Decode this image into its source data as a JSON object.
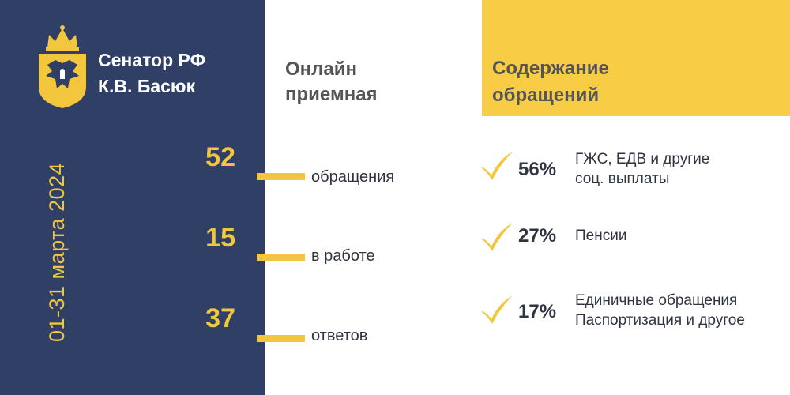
{
  "colors": {
    "navy": "#2f3f66",
    "gold": "#f2c73d",
    "yellow_panel": "#f9cc45"
  },
  "sidebar": {
    "emblem_icon": "coat-of-arms-icon",
    "title_line1": "Сенатор РФ",
    "title_line2": "К.В. Басюк",
    "period": "01-31 марта 2024"
  },
  "online": {
    "title_line1": "Онлайн",
    "title_line2": "приемная"
  },
  "stats": [
    {
      "value": "52",
      "label": "обращения"
    },
    {
      "value": "15",
      "label": "в работе"
    },
    {
      "value": "37",
      "label": "ответов"
    }
  ],
  "content": {
    "title_line1": "Содержание",
    "title_line2": "обращений",
    "check_icon": "checkmark-icon",
    "items": [
      {
        "percent": "56%",
        "line1": "ГЖС, ЕДВ и другие",
        "line2": "соц. выплаты"
      },
      {
        "percent": "27%",
        "line1": "Пенсии",
        "line2": ""
      },
      {
        "percent": "17%",
        "line1": "Единичные обращения",
        "line2": "Паспортизация и другое"
      }
    ]
  }
}
